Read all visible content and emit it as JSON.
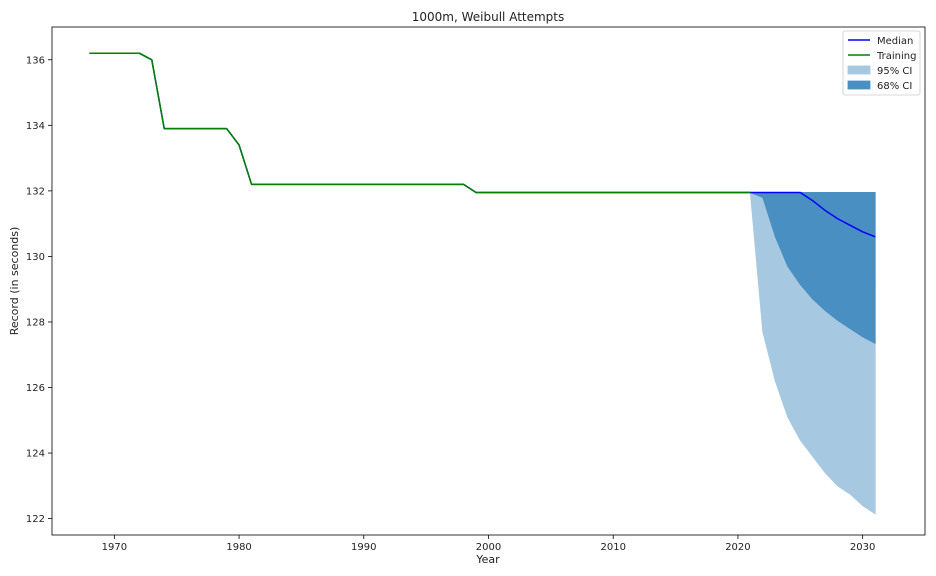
{
  "chart_data": {
    "type": "line",
    "title": "1000m, Weibull Attempts",
    "xlabel": "Year",
    "ylabel": "Record (in seconds)",
    "xlim": [
      1965,
      2035
    ],
    "ylim": [
      121.5,
      137.0
    ],
    "xticks": [
      1970,
      1980,
      1990,
      2000,
      2010,
      2020,
      2030
    ],
    "yticks": [
      122,
      124,
      126,
      128,
      130,
      132,
      134,
      136
    ],
    "grid": false,
    "legend_position": "top-right",
    "colors": {
      "median": "#0000ff",
      "training": "#008000",
      "ci95": "#a6c8e0",
      "ci68": "#4a8fc2"
    },
    "series": [
      {
        "name": "Training",
        "x": [
          1968,
          1972,
          1973,
          1974,
          1979,
          1980,
          1981,
          1998,
          1999,
          2021
        ],
        "y": [
          136.2,
          136.2,
          136.0,
          133.9,
          133.9,
          133.4,
          132.2,
          132.2,
          131.95,
          131.95
        ]
      },
      {
        "name": "Median",
        "x": [
          1968,
          1972,
          1973,
          1974,
          1979,
          1980,
          1981,
          1998,
          1999,
          2021,
          2025,
          2026,
          2027,
          2028,
          2029,
          2030,
          2031
        ],
        "y": [
          136.2,
          136.2,
          136.0,
          133.9,
          133.9,
          133.4,
          132.2,
          132.2,
          131.95,
          131.95,
          131.95,
          131.7,
          131.4,
          131.15,
          130.95,
          130.75,
          130.6
        ]
      },
      {
        "name": "95% CI",
        "x": [
          2021,
          2022,
          2023,
          2024,
          2025,
          2026,
          2027,
          2028,
          2029,
          2030,
          2031
        ],
        "upper": [
          131.95,
          131.95,
          131.95,
          131.95,
          131.95,
          131.95,
          131.95,
          131.95,
          131.95,
          131.95,
          131.95
        ],
        "lower": [
          131.95,
          127.7,
          126.2,
          125.1,
          124.4,
          123.9,
          123.4,
          123.0,
          122.75,
          122.4,
          122.15
        ]
      },
      {
        "name": "68% CI",
        "x": [
          2021,
          2022,
          2023,
          2024,
          2025,
          2026,
          2027,
          2028,
          2029,
          2030,
          2031
        ],
        "upper": [
          131.95,
          131.95,
          131.95,
          131.95,
          131.95,
          131.95,
          131.95,
          131.95,
          131.95,
          131.95,
          131.95
        ],
        "lower": [
          131.95,
          131.8,
          130.6,
          129.7,
          129.15,
          128.7,
          128.35,
          128.05,
          127.8,
          127.55,
          127.35
        ]
      }
    ],
    "legend": [
      "Median",
      "Training",
      "95% CI",
      "68% CI"
    ]
  }
}
